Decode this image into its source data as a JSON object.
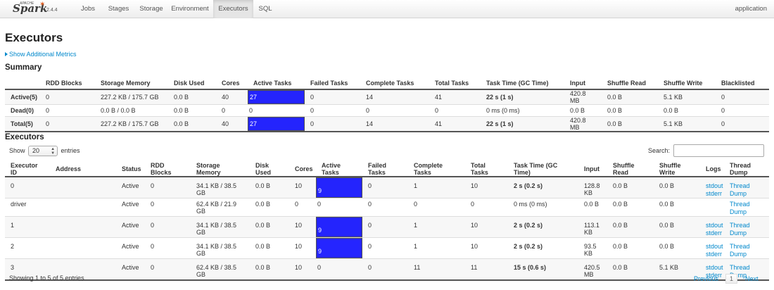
{
  "nav": {
    "brand_apache": "APACHE",
    "brand_name": "Spark",
    "version": "2.4.4",
    "tabs": [
      "Jobs",
      "Stages",
      "Storage",
      "Environment",
      "Executors",
      "SQL"
    ],
    "active_tab": "Executors",
    "app_name": "application"
  },
  "page_title": "Executors",
  "show_metrics_link": "Show Additional Metrics",
  "summary": {
    "title": "Summary",
    "columns": [
      "",
      "RDD Blocks",
      "Storage Memory",
      "Disk Used",
      "Cores",
      "Active Tasks",
      "Failed Tasks",
      "Complete Tasks",
      "Total Tasks",
      "Task Time (GC Time)",
      "Input",
      "Shuffle Read",
      "Shuffle Write",
      "Blacklisted"
    ],
    "rows": [
      {
        "label": "Active(5)",
        "rdd": "0",
        "storage": "227.2 KB / 175.7 GB",
        "disk": "0.0 B",
        "cores": "40",
        "active": "27",
        "active_fill": 1,
        "failed": "0",
        "complete": "14",
        "total": "41",
        "time": "22 s (1 s)",
        "time_bold": true,
        "input": "420.8 MB",
        "sread": "0.0 B",
        "swrite": "5.1 KB",
        "black": "0"
      },
      {
        "label": "Dead(0)",
        "rdd": "0",
        "storage": "0.0 B / 0.0 B",
        "disk": "0.0 B",
        "cores": "0",
        "active": "0",
        "active_fill": 0,
        "failed": "0",
        "complete": "0",
        "total": "0",
        "time": "0 ms (0 ms)",
        "time_bold": false,
        "input": "0.0 B",
        "sread": "0.0 B",
        "swrite": "0.0 B",
        "black": "0"
      },
      {
        "label": "Total(5)",
        "rdd": "0",
        "storage": "227.2 KB / 175.7 GB",
        "disk": "0.0 B",
        "cores": "40",
        "active": "27",
        "active_fill": 1,
        "failed": "0",
        "complete": "14",
        "total": "41",
        "time": "22 s (1 s)",
        "time_bold": true,
        "input": "420.8 MB",
        "sread": "0.0 B",
        "swrite": "5.1 KB",
        "black": "0"
      }
    ]
  },
  "executors": {
    "title": "Executors",
    "show_label": "Show",
    "page_size": "20",
    "entries_label": "entries",
    "search_label": "Search:",
    "columns": [
      "Executor ID",
      "Address",
      "Status",
      "RDD Blocks",
      "Storage Memory",
      "Disk Used",
      "Cores",
      "Active Tasks",
      "Failed Tasks",
      "Complete Tasks",
      "Total Tasks",
      "Task Time (GC Time)",
      "Input",
      "Shuffle Read",
      "Shuffle Write",
      "Logs",
      "Thread Dump"
    ],
    "rows": [
      {
        "id": "0",
        "address": "",
        "status": "Active",
        "rdd": "0",
        "storage": "34.1 KB / 38.5 GB",
        "disk": "0.0 B",
        "cores": "10",
        "active": "9",
        "active_fill": 1,
        "failed": "0",
        "complete": "1",
        "total": "10",
        "time": "2 s (0.2 s)",
        "time_bold": true,
        "input": "128.8 KB",
        "sread": "0.0 B",
        "swrite": "0.0 B",
        "logs": [
          "stdout",
          "stderr"
        ],
        "dump": "Thread Dump"
      },
      {
        "id": "driver",
        "address": "",
        "status": "Active",
        "rdd": "0",
        "storage": "62.4 KB / 21.9 GB",
        "disk": "0.0 B",
        "cores": "0",
        "active": "0",
        "active_fill": 0,
        "failed": "0",
        "complete": "0",
        "total": "0",
        "time": "0 ms (0 ms)",
        "time_bold": false,
        "input": "0.0 B",
        "sread": "0.0 B",
        "swrite": "0.0 B",
        "logs": [],
        "dump": "Thread Dump"
      },
      {
        "id": "1",
        "address": "",
        "status": "Active",
        "rdd": "0",
        "storage": "34.1 KB / 38.5 GB",
        "disk": "0.0 B",
        "cores": "10",
        "active": "9",
        "active_fill": 1,
        "failed": "0",
        "complete": "1",
        "total": "10",
        "time": "2 s (0.2 s)",
        "time_bold": true,
        "input": "113.1 KB",
        "sread": "0.0 B",
        "swrite": "0.0 B",
        "logs": [
          "stdout",
          "stderr"
        ],
        "dump": "Thread Dump"
      },
      {
        "id": "2",
        "address": "",
        "status": "Active",
        "rdd": "0",
        "storage": "34.1 KB / 38.5 GB",
        "disk": "0.0 B",
        "cores": "10",
        "active": "9",
        "active_fill": 1,
        "failed": "0",
        "complete": "1",
        "total": "10",
        "time": "2 s (0.2 s)",
        "time_bold": true,
        "input": "93.5 KB",
        "sread": "0.0 B",
        "swrite": "0.0 B",
        "logs": [
          "stdout",
          "stderr"
        ],
        "dump": "Thread Dump"
      },
      {
        "id": "3",
        "address": "",
        "status": "Active",
        "rdd": "0",
        "storage": "62.4 KB / 38.5 GB",
        "disk": "0.0 B",
        "cores": "10",
        "active": "0",
        "active_fill": 0,
        "failed": "0",
        "complete": "11",
        "total": "11",
        "time": "15 s (0.6 s)",
        "time_bold": true,
        "input": "420.5 MB",
        "sread": "0.0 B",
        "swrite": "5.1 KB",
        "logs": [
          "stdout",
          "stderr"
        ],
        "dump": "Thread Dump"
      }
    ],
    "info": "Showing 1 to 5 of 5 entries",
    "pager": {
      "previous": "Previous",
      "current": "1",
      "next": "Next"
    }
  },
  "colors": {
    "active_bar": "#0000ff",
    "link": "#0088cc"
  }
}
